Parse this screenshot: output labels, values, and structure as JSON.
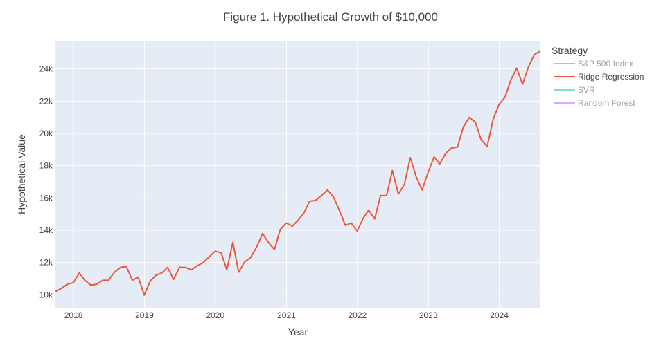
{
  "chart_data": {
    "type": "line",
    "title": "Figure 1. Hypothetical Growth of $10,000",
    "xlabel": "Year",
    "ylabel": "Hypothetical Value",
    "x_range": [
      "2017-09-30",
      "2024-07-31"
    ],
    "ylim": [
      9200,
      25700
    ],
    "x_ticks": [
      {
        "label": "2018",
        "date": "2018-01-01"
      },
      {
        "label": "2019",
        "date": "2019-01-01"
      },
      {
        "label": "2020",
        "date": "2020-01-01"
      },
      {
        "label": "2021",
        "date": "2021-01-01"
      },
      {
        "label": "2022",
        "date": "2022-01-01"
      },
      {
        "label": "2023",
        "date": "2023-01-01"
      },
      {
        "label": "2024",
        "date": "2024-01-01"
      }
    ],
    "y_ticks": [
      {
        "label": "10k",
        "value": 10000
      },
      {
        "label": "12k",
        "value": 12000
      },
      {
        "label": "14k",
        "value": 14000
      },
      {
        "label": "16k",
        "value": 16000
      },
      {
        "label": "18k",
        "value": 18000
      },
      {
        "label": "20k",
        "value": 20000
      },
      {
        "label": "22k",
        "value": 22000
      },
      {
        "label": "24k",
        "value": 24000
      }
    ],
    "grid": true,
    "legend": {
      "title": "Strategy",
      "position": "top-right",
      "entries": [
        {
          "name": "S&P 500 Index",
          "color": "#636efa",
          "visible": false
        },
        {
          "name": "Ridge Regression",
          "color": "#ef553b",
          "visible": true
        },
        {
          "name": "SVR",
          "color": "#00cc96",
          "visible": false
        },
        {
          "name": "Random Forest",
          "color": "#ab63fa",
          "visible": false
        }
      ]
    },
    "series": [
      {
        "name": "Ridge Regression",
        "color": "#ef553b",
        "x": [
          "2017-09-30",
          "2017-10-31",
          "2017-11-30",
          "2017-12-31",
          "2018-01-31",
          "2018-02-28",
          "2018-03-31",
          "2018-04-30",
          "2018-05-31",
          "2018-06-30",
          "2018-07-31",
          "2018-08-31",
          "2018-09-30",
          "2018-10-31",
          "2018-11-30",
          "2018-12-31",
          "2019-01-31",
          "2019-02-28",
          "2019-03-31",
          "2019-04-30",
          "2019-05-31",
          "2019-06-30",
          "2019-07-31",
          "2019-08-31",
          "2019-09-30",
          "2019-10-31",
          "2019-11-30",
          "2019-12-31",
          "2020-01-31",
          "2020-02-29",
          "2020-03-31",
          "2020-04-30",
          "2020-05-31",
          "2020-06-30",
          "2020-07-31",
          "2020-08-31",
          "2020-09-30",
          "2020-10-31",
          "2020-11-30",
          "2020-12-31",
          "2021-01-31",
          "2021-02-28",
          "2021-03-31",
          "2021-04-30",
          "2021-05-31",
          "2021-06-30",
          "2021-07-31",
          "2021-08-31",
          "2021-09-30",
          "2021-10-31",
          "2021-11-30",
          "2021-12-31",
          "2022-01-31",
          "2022-02-28",
          "2022-03-31",
          "2022-04-30",
          "2022-05-31",
          "2022-06-30",
          "2022-07-31",
          "2022-08-31",
          "2022-09-30",
          "2022-10-31",
          "2022-11-30",
          "2022-12-31",
          "2023-01-31",
          "2023-02-28",
          "2023-03-31",
          "2023-04-30",
          "2023-05-31",
          "2023-06-30",
          "2023-07-31",
          "2023-08-31",
          "2023-09-30",
          "2023-10-31",
          "2023-11-30",
          "2023-12-31",
          "2024-01-31",
          "2024-02-29",
          "2024-03-31",
          "2024-04-30",
          "2024-05-31",
          "2024-06-30",
          "2024-07-31"
        ],
        "values": [
          10200,
          10400,
          10650,
          10750,
          11350,
          10900,
          10600,
          10650,
          10900,
          10900,
          11400,
          11700,
          11750,
          10900,
          11100,
          9980,
          10850,
          11200,
          11350,
          11700,
          10950,
          11700,
          11700,
          11550,
          11800,
          12000,
          12350,
          12700,
          12600,
          11550,
          13250,
          11400,
          12050,
          12300,
          12950,
          13800,
          13250,
          12800,
          14050,
          14450,
          14250,
          14600,
          15050,
          15800,
          15850,
          16150,
          16500,
          16050,
          15250,
          14300,
          14450,
          13950,
          14750,
          15250,
          14700,
          16150,
          16150,
          17700,
          16250,
          16850,
          18500,
          17300,
          16500,
          17600,
          18550,
          18100,
          18750,
          19100,
          19150,
          20400,
          21000,
          20700,
          19600,
          19200,
          20850,
          21800,
          22250,
          23300,
          24050,
          23050,
          24150,
          24900,
          25100
        ]
      }
    ]
  }
}
